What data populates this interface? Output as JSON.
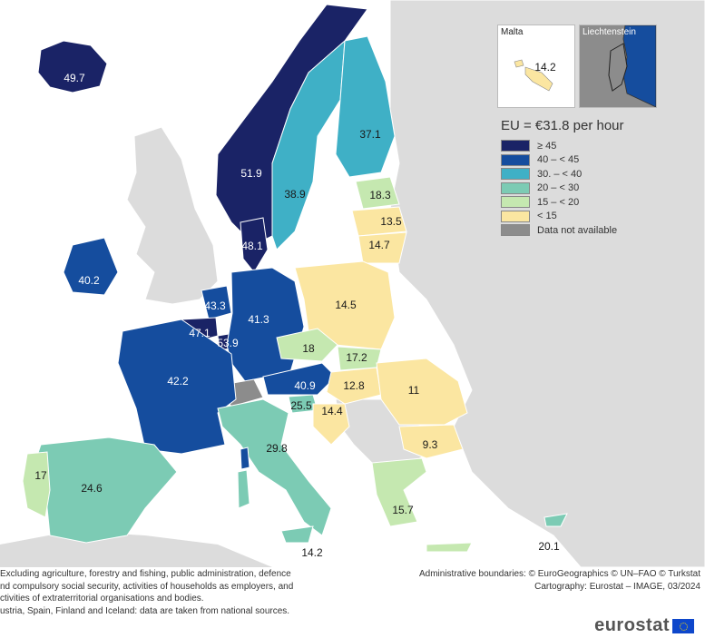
{
  "legend": {
    "title": "EU = €31.8 per hour",
    "classes": [
      {
        "label": "≥ 45",
        "color": "#1a2366"
      },
      {
        "label": "40 – < 45",
        "color": "#154d9e"
      },
      {
        "label": "30.  – < 40",
        "color": "#3fb0c6"
      },
      {
        "label": "20 – < 30",
        "color": "#7ccbb4"
      },
      {
        "label": "15 – < 20",
        "color": "#c5e8b0"
      },
      {
        "label": "< 15",
        "color": "#fbe6a1"
      },
      {
        "label": "Data not available",
        "color": "#8c8c8c"
      }
    ]
  },
  "insets": {
    "malta": {
      "title": "Malta",
      "value": "14.2"
    },
    "liechtenstein": {
      "title": "Liechtenstein"
    }
  },
  "values": {
    "iceland": "49.7",
    "norway": "51.9",
    "sweden": "38.9",
    "finland": "37.1",
    "estonia": "18.3",
    "latvia": "13.5",
    "lithuania": "14.7",
    "denmark": "48.1",
    "ireland": "40.2",
    "netherlands": "43.3",
    "belgium": "47.1",
    "luxembourg": "53.9",
    "germany": "41.3",
    "poland": "14.5",
    "czechia": "18",
    "slovakia": "17.2",
    "austria": "40.9",
    "hungary": "12.8",
    "romania": "11",
    "france": "42.2",
    "slovenia": "25.5",
    "croatia": "14.4",
    "bulgaria": "9.3",
    "italy": "29.8",
    "portugal": "17",
    "spain": "24.6",
    "greece": "15.7",
    "cyprus": "20.1",
    "malta_main": "14.2"
  },
  "notes": {
    "line1": "Excluding agriculture, forestry and fishing, public administration, defence",
    "line2": "nd compulsory social security, activities of households as employers, and",
    "line3": "ctivities of extraterritorial organisations and bodies.",
    "line4": "ustria, Spain, Finland and Iceland: data are taken from national sources."
  },
  "credits": {
    "line1": "Administrative boundaries: © EuroGeographics © UN–FAO © Turkstat",
    "line2": "Cartography: Eurostat – IMAGE, 03/2024"
  },
  "logo": {
    "text": "eurostat"
  }
}
